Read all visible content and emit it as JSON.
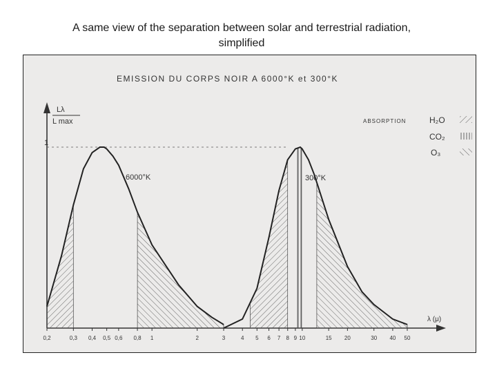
{
  "slide": {
    "title_line1": "A same view of the separation between solar and terrestrial radiation,",
    "title_line2": "simplified"
  },
  "chart_data": {
    "type": "line",
    "title": "EMISSION DU CORPS NOIR A 6000°K et 300°K",
    "ylabel_top": "Lλ",
    "ylabel_bottom": "L max",
    "xlabel": "λ (μ)",
    "y_tick_label": "1",
    "x_scale": "log",
    "x_ticks": [
      "0,2",
      "0,3",
      "0,4",
      "0,5",
      "0,6",
      "0,8",
      "1",
      "2",
      "3",
      "4",
      "5",
      "6",
      "7",
      "8",
      "9",
      "10",
      "15",
      "20",
      "30",
      "40",
      "50"
    ],
    "x_tick_values": [
      0.2,
      0.3,
      0.4,
      0.5,
      0.6,
      0.8,
      1,
      2,
      3,
      4,
      5,
      6,
      7,
      8,
      9,
      10,
      15,
      20,
      30,
      40,
      50
    ],
    "series": [
      {
        "name": "6000°K",
        "x": [
          0.2,
          0.25,
          0.3,
          0.35,
          0.4,
          0.45,
          0.48,
          0.5,
          0.55,
          0.6,
          0.7,
          0.8,
          1,
          1.5,
          2,
          2.5,
          3
        ],
        "values": [
          0.12,
          0.4,
          0.68,
          0.88,
          0.97,
          1.0,
          1.0,
          0.99,
          0.95,
          0.9,
          0.77,
          0.64,
          0.46,
          0.24,
          0.12,
          0.06,
          0.02
        ]
      },
      {
        "name": "300°K",
        "x": [
          3,
          4,
          5,
          6,
          7,
          8,
          9,
          9.7,
          10,
          11,
          12,
          15,
          20,
          25,
          30,
          40,
          50
        ],
        "values": [
          0.0,
          0.05,
          0.22,
          0.5,
          0.76,
          0.93,
          0.99,
          1.0,
          0.99,
          0.93,
          0.85,
          0.6,
          0.34,
          0.2,
          0.13,
          0.05,
          0.02
        ]
      }
    ],
    "annotations": {
      "label_6000": "6000°K",
      "label_300": "300°K",
      "absorption_label": "ABSORPTION",
      "absorbers": [
        "H₂O",
        "CO₂",
        "O₃"
      ]
    }
  }
}
